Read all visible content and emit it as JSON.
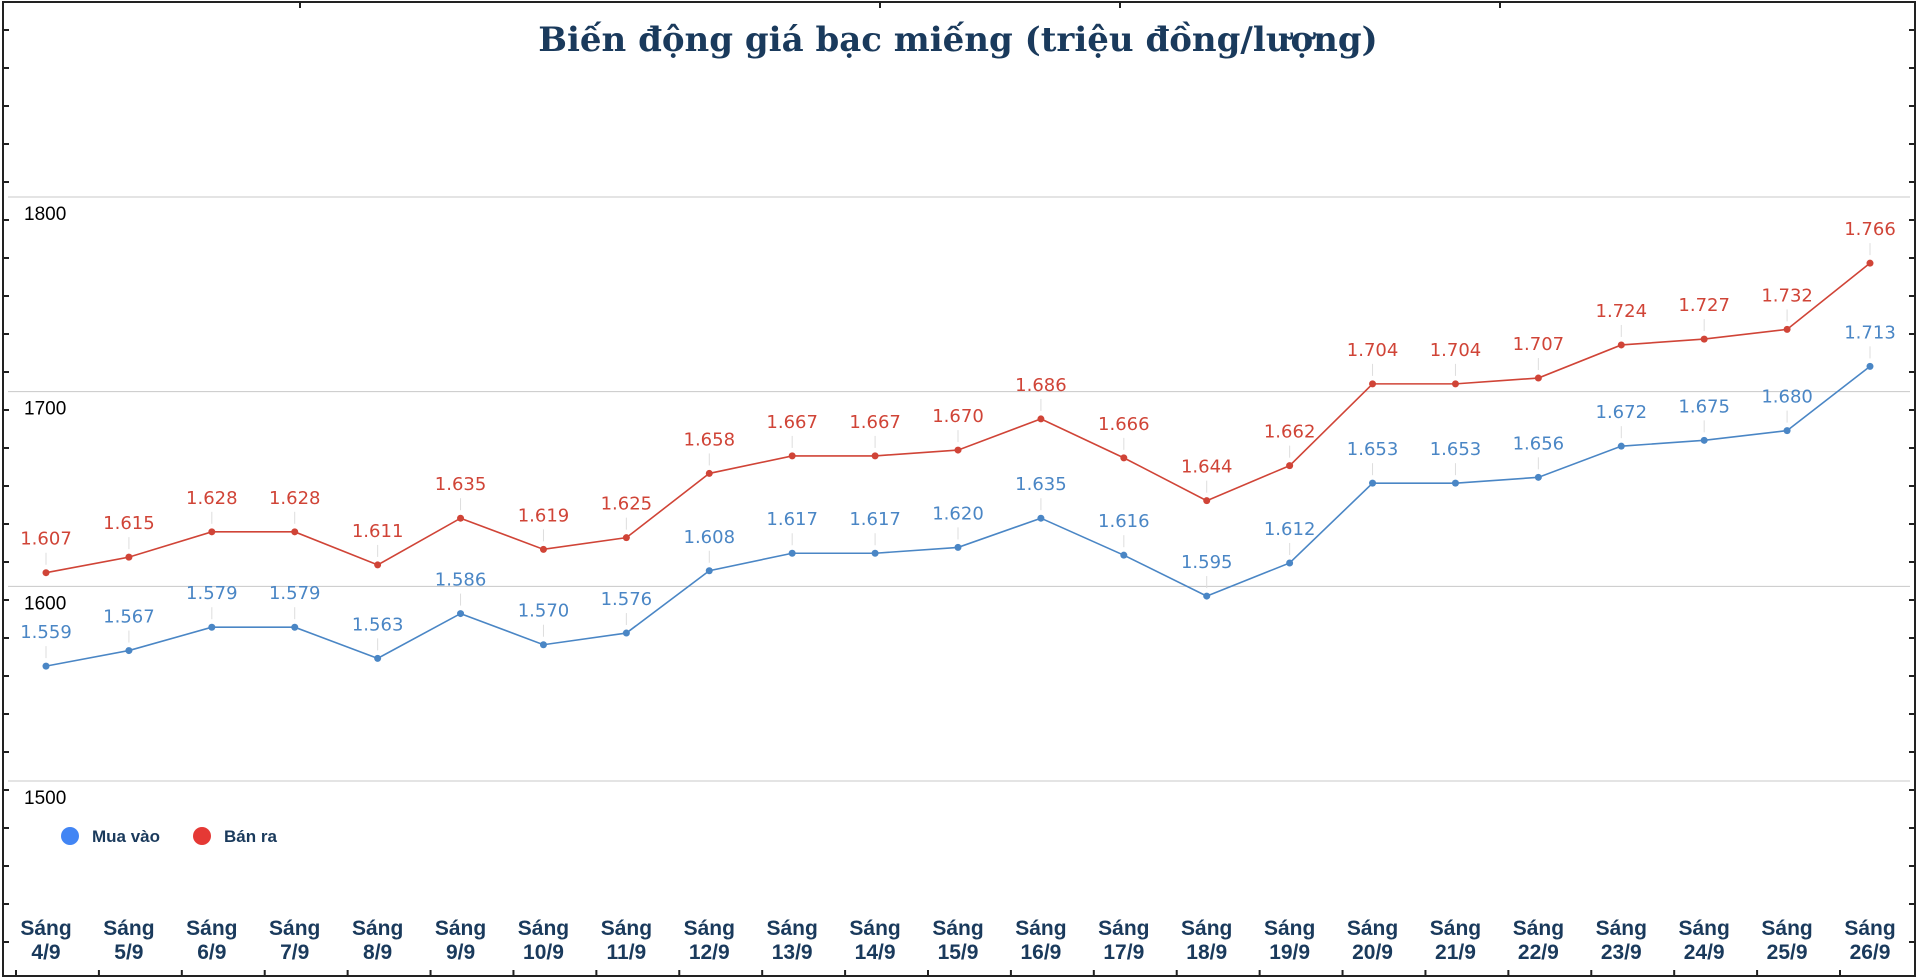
{
  "chart_data": {
    "type": "line",
    "title": "Biến động giá bạc miếng (triệu đồng/lượng)",
    "categories": [
      [
        "Sáng",
        "4/9"
      ],
      [
        "Sáng",
        "5/9"
      ],
      [
        "Sáng",
        "6/9"
      ],
      [
        "Sáng",
        "7/9"
      ],
      [
        "Sáng",
        "8/9"
      ],
      [
        "Sáng",
        "9/9"
      ],
      [
        "Sáng",
        "10/9"
      ],
      [
        "Sáng",
        "11/9"
      ],
      [
        "Sáng",
        "12/9"
      ],
      [
        "Sáng",
        "13/9"
      ],
      [
        "Sáng",
        "14/9"
      ],
      [
        "Sáng",
        "15/9"
      ],
      [
        "Sáng",
        "16/9"
      ],
      [
        "Sáng",
        "17/9"
      ],
      [
        "Sáng",
        "18/9"
      ],
      [
        "Sáng",
        "19/9"
      ],
      [
        "Sáng",
        "20/9"
      ],
      [
        "Sáng",
        "21/9"
      ],
      [
        "Sáng",
        "22/9"
      ],
      [
        "Sáng",
        "23/9"
      ],
      [
        "Sáng",
        "24/9"
      ],
      [
        "Sáng",
        "25/9"
      ],
      [
        "Sáng",
        "26/9"
      ]
    ],
    "series": [
      {
        "name": "Mua vào",
        "color": "#4a86c5",
        "values": [
          1559,
          1567,
          1579,
          1579,
          1563,
          1586,
          1570,
          1576,
          1608,
          1617,
          1617,
          1620,
          1635,
          1616,
          1595,
          1612,
          1653,
          1653,
          1656,
          1672,
          1675,
          1680,
          1713
        ],
        "labels": [
          "1.559",
          "1.567",
          "1.579",
          "1.579",
          "1.563",
          "1.586",
          "1.570",
          "1.576",
          "1.608",
          "1.617",
          "1.617",
          "1.620",
          "1.635",
          "1.616",
          "1.595",
          "1.612",
          "1.653",
          "1.653",
          "1.656",
          "1.672",
          "1.675",
          "1.680",
          "1.713"
        ]
      },
      {
        "name": "Bán ra",
        "color": "#d04437",
        "values": [
          1607,
          1615,
          1628,
          1628,
          1611,
          1635,
          1619,
          1625,
          1658,
          1667,
          1667,
          1670,
          1686,
          1666,
          1644,
          1662,
          1704,
          1704,
          1707,
          1724,
          1727,
          1732,
          1766
        ],
        "labels": [
          "1.607",
          "1.615",
          "1.628",
          "1.628",
          "1.611",
          "1.635",
          "1.619",
          "1.625",
          "1.658",
          "1.667",
          "1.667",
          "1.670",
          "1.686",
          "1.666",
          "1.644",
          "1.662",
          "1.704",
          "1.704",
          "1.707",
          "1.724",
          "1.727",
          "1.732",
          "1.766"
        ]
      }
    ],
    "yticks": [
      1500,
      1600,
      1700,
      1800
    ],
    "ylim": [
      1500,
      1800
    ],
    "grid": true,
    "legend": "bottom-left",
    "legend_marker_colors": {
      "Mua vào": "#4285f4",
      "Bán ra": "#e53935"
    }
  }
}
